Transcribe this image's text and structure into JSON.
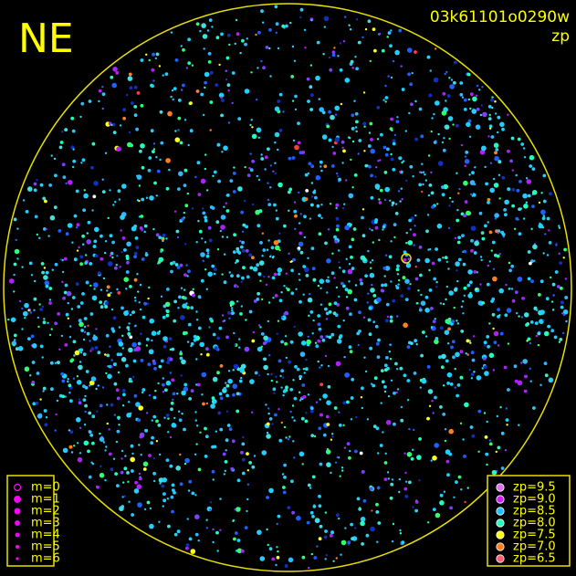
{
  "header": {
    "direction": "NE",
    "frame_id": "03k61101o0290w",
    "mode": "zp"
  },
  "legend_magnitude": [
    "m=0",
    "m=1",
    "m=2",
    "m=3",
    "m=4",
    "m=5",
    "m=6"
  ],
  "legend_zp": [
    "zp=9.5",
    "zp=9.0",
    "zp=8.5",
    "zp=8.0",
    "zp=7.5",
    "zp=7.0",
    "zp=6.5"
  ]
}
